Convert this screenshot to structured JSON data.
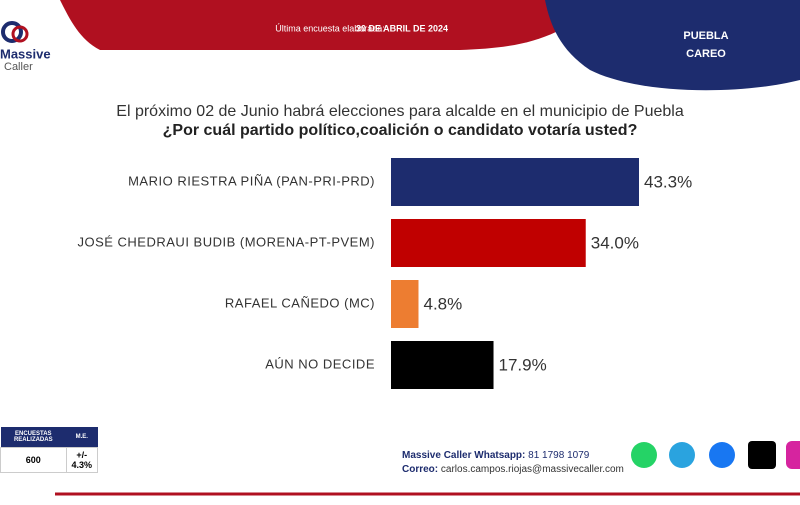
{
  "header": {
    "survey_label": "Última encuesta elaborada:",
    "survey_date": "30 DE ABRIL DE 2024",
    "region": "PUEBLA",
    "section": "CAREO",
    "logo_line1": "Massive",
    "logo_line2": "Caller"
  },
  "chart_data": {
    "type": "bar",
    "orientation": "horizontal",
    "title": "El próximo 02 de Junio habrá elecciones para alcalde en el municipio de Puebla",
    "subtitle": "¿Por cuál partido político,coalición o candidato votaría usted?",
    "categories": [
      "MARIO RIESTRA PIÑA (PAN-PRI-PRD)",
      "JOSÉ CHEDRAUI BUDIB (MORENA-PT-PVEM)",
      "RAFAEL CAÑEDO (MC)",
      "AÚN NO DECIDE"
    ],
    "values": [
      43.3,
      34.0,
      4.8,
      17.9
    ],
    "value_labels": [
      "43.3%",
      "34.0%",
      "4.8%",
      "17.9%"
    ],
    "colors": [
      "#1d2c6e",
      "#c00000",
      "#ed7d31",
      "#000000"
    ]
  },
  "table": {
    "headers": [
      "ENCUESTAS REALIZADAS",
      "M.E."
    ],
    "rows": [
      [
        "600",
        "+/- 4.3%"
      ]
    ]
  },
  "footer": {
    "whatsapp_label": "Massive Caller Whatsapp:",
    "whatsapp": "81 1798 1079",
    "email_label": "Correo:",
    "email": "carlos.campos.riojas@massivecaller.com"
  }
}
